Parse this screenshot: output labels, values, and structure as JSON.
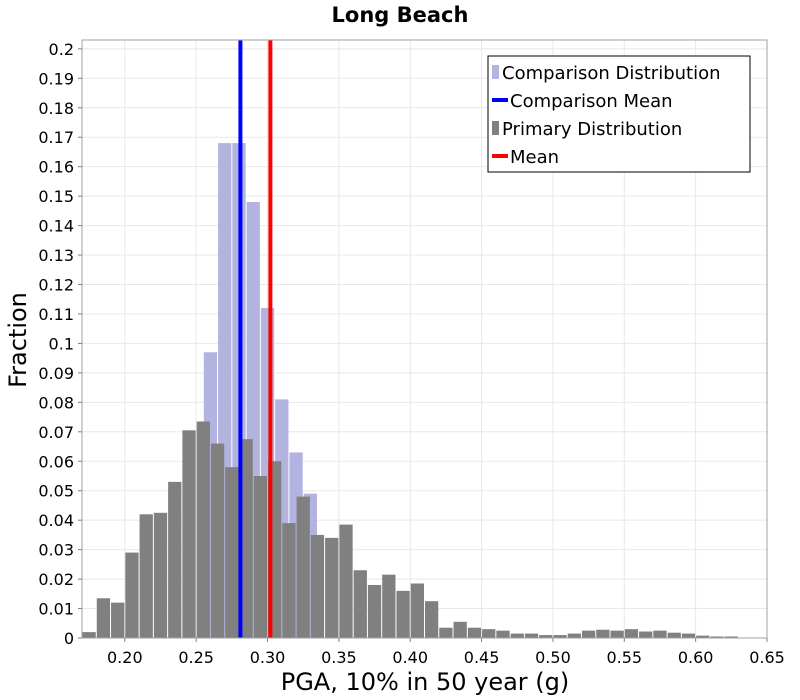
{
  "chart_data": {
    "type": "bar",
    "title": "Long Beach",
    "xlabel": "PGA, 10% in 50 year (g)",
    "ylabel": "Fraction",
    "xlim": [
      0.17,
      0.65
    ],
    "ylim": [
      0,
      0.203
    ],
    "bin_width": 0.01,
    "grid": true,
    "legend_placement": "top-right",
    "x_ticks": [
      {
        "value": 0.2,
        "label": "0.20"
      },
      {
        "value": 0.25,
        "label": "0.25"
      },
      {
        "value": 0.3,
        "label": "0.30"
      },
      {
        "value": 0.35,
        "label": "0.35"
      },
      {
        "value": 0.4,
        "label": "0.40"
      },
      {
        "value": 0.45,
        "label": "0.45"
      },
      {
        "value": 0.5,
        "label": "0.50"
      },
      {
        "value": 0.55,
        "label": "0.55"
      },
      {
        "value": 0.6,
        "label": "0.60"
      },
      {
        "value": 0.65,
        "label": "0.65"
      }
    ],
    "y_ticks": [
      {
        "value": 0,
        "label": "0"
      },
      {
        "value": 0.01,
        "label": "0.01"
      },
      {
        "value": 0.02,
        "label": "0.02"
      },
      {
        "value": 0.03,
        "label": "0.03"
      },
      {
        "value": 0.04,
        "label": "0.04"
      },
      {
        "value": 0.05,
        "label": "0.05"
      },
      {
        "value": 0.06,
        "label": "0.06"
      },
      {
        "value": 0.07,
        "label": "0.07"
      },
      {
        "value": 0.08,
        "label": "0.08"
      },
      {
        "value": 0.09,
        "label": "0.09"
      },
      {
        "value": 0.1,
        "label": "0.1"
      },
      {
        "value": 0.11,
        "label": "0.11"
      },
      {
        "value": 0.12,
        "label": "0.12"
      },
      {
        "value": 0.13,
        "label": "0.13"
      },
      {
        "value": 0.14,
        "label": "0.14"
      },
      {
        "value": 0.15,
        "label": "0.15"
      },
      {
        "value": 0.16,
        "label": "0.16"
      },
      {
        "value": 0.17,
        "label": "0.17"
      },
      {
        "value": 0.18,
        "label": "0.18"
      },
      {
        "value": 0.19,
        "label": "0.19"
      },
      {
        "value": 0.2,
        "label": "0.2"
      }
    ],
    "series": [
      {
        "name": "Comparison Distribution",
        "color": "#b3b3e0",
        "x": [
          0.26,
          0.27,
          0.28,
          0.29,
          0.3,
          0.31,
          0.32,
          0.33
        ],
        "values": [
          0.097,
          0.168,
          0.168,
          0.148,
          0.112,
          0.081,
          0.063,
          0.049
        ]
      },
      {
        "name": "Primary Distribution",
        "color": "#808080",
        "x": [
          0.175,
          0.185,
          0.195,
          0.205,
          0.215,
          0.225,
          0.235,
          0.245,
          0.255,
          0.265,
          0.275,
          0.285,
          0.295,
          0.305,
          0.315,
          0.325,
          0.335,
          0.345,
          0.355,
          0.365,
          0.375,
          0.385,
          0.395,
          0.405,
          0.415,
          0.425,
          0.435,
          0.445,
          0.455,
          0.465,
          0.475,
          0.485,
          0.495,
          0.505,
          0.515,
          0.525,
          0.535,
          0.545,
          0.555,
          0.565,
          0.575,
          0.585,
          0.595,
          0.605,
          0.615,
          0.625,
          0.635,
          0.645
        ],
        "values": [
          0.002,
          0.0135,
          0.012,
          0.029,
          0.042,
          0.0425,
          0.053,
          0.0705,
          0.0735,
          0.066,
          0.058,
          0.0675,
          0.055,
          0.06,
          0.039,
          0.048,
          0.035,
          0.034,
          0.0385,
          0.023,
          0.018,
          0.0215,
          0.016,
          0.0185,
          0.0125,
          0.0035,
          0.0055,
          0.0035,
          0.003,
          0.0025,
          0.0015,
          0.0015,
          0.001,
          0.001,
          0.0015,
          0.0025,
          0.0028,
          0.0025,
          0.003,
          0.0022,
          0.0025,
          0.0018,
          0.0015,
          0.0008,
          0.0005,
          0.0005,
          0.0,
          0.0
        ]
      }
    ],
    "lines": [
      {
        "name": "Comparison Mean",
        "color": "#0000ff",
        "x": 0.281
      },
      {
        "name": "Mean",
        "color": "#ff0000",
        "x": 0.302
      }
    ],
    "legend": [
      {
        "label": "Comparison Distribution",
        "kind": "bar",
        "color": "#b3b3e0"
      },
      {
        "label": "Comparison Mean",
        "kind": "line",
        "color": "#0000ff"
      },
      {
        "label": "Primary Distribution",
        "kind": "bar",
        "color": "#808080"
      },
      {
        "label": "Mean",
        "kind": "line",
        "color": "#ff0000"
      }
    ]
  }
}
